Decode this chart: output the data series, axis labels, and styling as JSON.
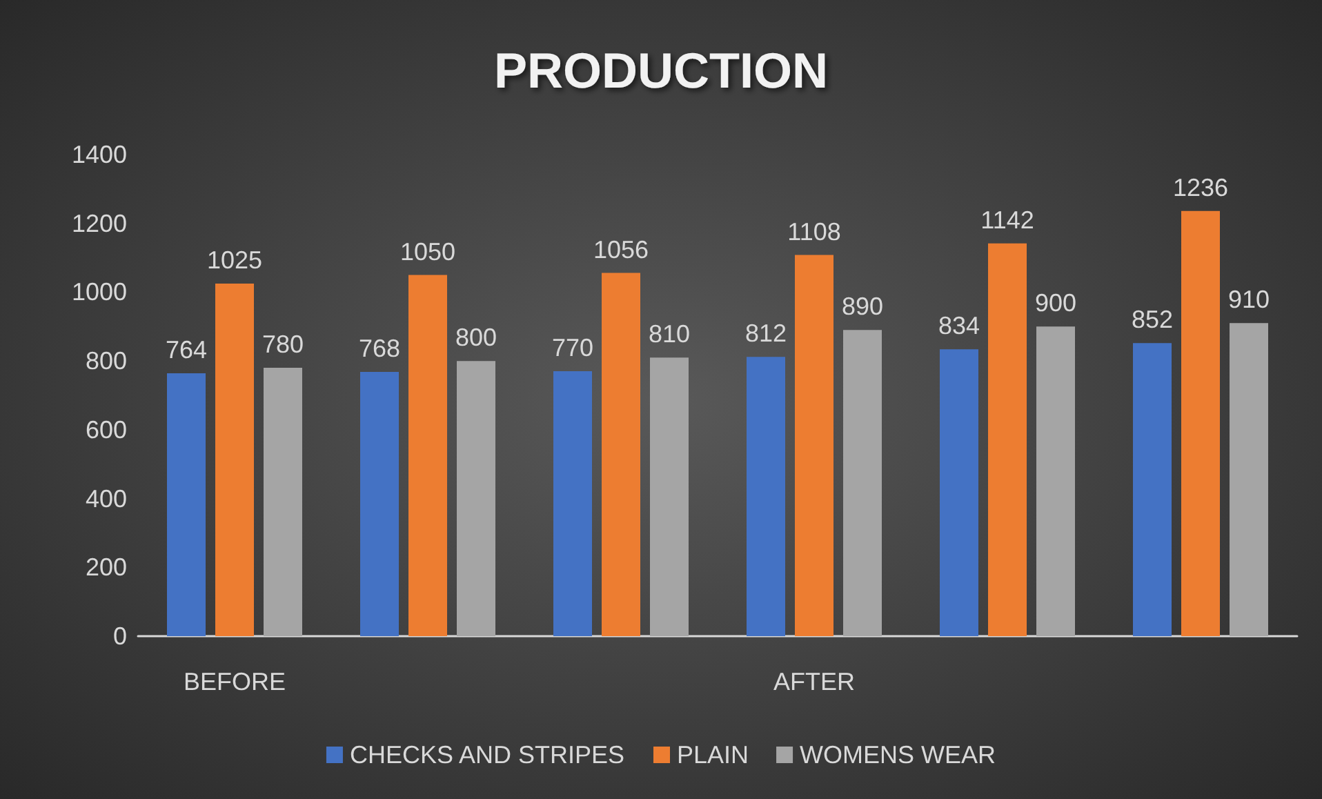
{
  "chart_data": {
    "type": "bar",
    "title": "PRODUCTION",
    "categories": [
      "BEFORE",
      null,
      null,
      "AFTER",
      null,
      null
    ],
    "series": [
      {
        "name": "CHECKS AND STRIPES",
        "color": "#4472c4",
        "values": [
          764,
          768,
          770,
          812,
          834,
          852
        ]
      },
      {
        "name": "PLAIN",
        "color": "#ed7d31",
        "values": [
          1025,
          1050,
          1056,
          1108,
          1142,
          1236
        ]
      },
      {
        "name": "WOMENS WEAR",
        "color": "#a5a5a5",
        "values": [
          780,
          800,
          810,
          890,
          900,
          910
        ]
      }
    ],
    "ylim": [
      0,
      1400
    ],
    "yticks": [
      0,
      200,
      400,
      600,
      800,
      1000,
      1200,
      1400
    ],
    "data_labels": true,
    "legend": "bottom"
  }
}
